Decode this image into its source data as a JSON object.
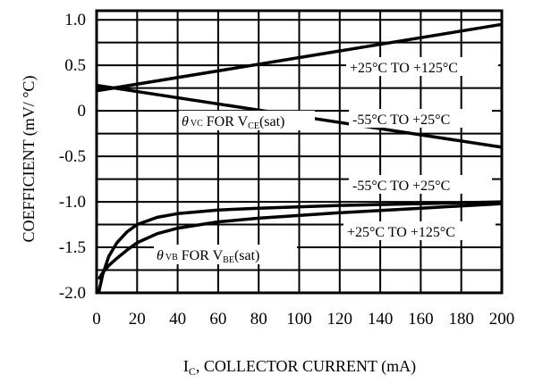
{
  "chart_data": {
    "type": "line",
    "xlabel": {
      "main": "I",
      "sub": "C",
      "rest": ", COLLECTOR CURRENT (mA)"
    },
    "ylabel": "COEFFICIENT (mV/ °C)",
    "xlim": [
      0,
      200
    ],
    "ylim": [
      -2.0,
      1.1
    ],
    "x_ticks": [
      "0",
      "20",
      "40",
      "60",
      "80",
      "100",
      "120",
      "140",
      "160",
      "180",
      "200"
    ],
    "y_ticks": [
      "1.0",
      "0.5",
      "0",
      "-0.5",
      "-1.0",
      "-1.5",
      "-2.0"
    ],
    "grid": true,
    "series": [
      {
        "name": "+25°C TO +125°C",
        "group": "VC",
        "points": [
          [
            0,
            0.22
          ],
          [
            200,
            0.95
          ]
        ]
      },
      {
        "name": "-55°C TO +25°C",
        "group": "VC",
        "points": [
          [
            0,
            0.28
          ],
          [
            200,
            -0.4
          ]
        ]
      },
      {
        "name": "-55°C TO +25°C",
        "group": "VB",
        "points": [
          [
            1,
            -2.0
          ],
          [
            3,
            -1.8
          ],
          [
            6,
            -1.6
          ],
          [
            10,
            -1.45
          ],
          [
            15,
            -1.33
          ],
          [
            20,
            -1.25
          ],
          [
            30,
            -1.17
          ],
          [
            40,
            -1.13
          ],
          [
            60,
            -1.09
          ],
          [
            80,
            -1.07
          ],
          [
            120,
            -1.04
          ],
          [
            160,
            -1.02
          ],
          [
            200,
            -1.0
          ]
        ]
      },
      {
        "name": "+25°C TO +125°C",
        "group": "VB",
        "points": [
          [
            1,
            -1.85
          ],
          [
            3,
            -1.78
          ],
          [
            6,
            -1.7
          ],
          [
            10,
            -1.62
          ],
          [
            15,
            -1.53
          ],
          [
            20,
            -1.45
          ],
          [
            30,
            -1.35
          ],
          [
            40,
            -1.29
          ],
          [
            60,
            -1.22
          ],
          [
            80,
            -1.18
          ],
          [
            120,
            -1.12
          ],
          [
            160,
            -1.07
          ],
          [
            200,
            -1.02
          ]
        ]
      }
    ],
    "annotations": {
      "vc": {
        "theta": "θ",
        "theta_sub": "VC",
        "for": " FOR V",
        "v_sub": "CE",
        "tail": "(sat)"
      },
      "vb": {
        "theta": "θ",
        "theta_sub": "VB",
        "for": " FOR V",
        "v_sub": "BE",
        "tail": "(sat)"
      }
    }
  }
}
